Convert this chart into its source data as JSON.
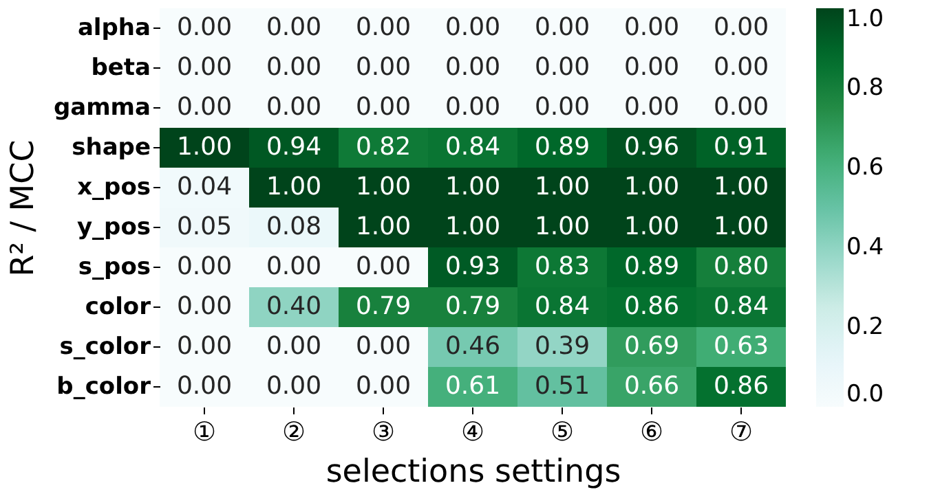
{
  "chart_data": {
    "type": "heatmap",
    "xlabel": "selections settings",
    "ylabel": "R² / MCC",
    "categories": [
      "①",
      "②",
      "③",
      "④",
      "⑤",
      "⑥",
      "⑦"
    ],
    "y_categories": [
      "alpha",
      "beta",
      "gamma",
      "shape",
      "x_pos",
      "y_pos",
      "s_pos",
      "color",
      "s_color",
      "b_color"
    ],
    "cells": [
      [
        0,
        0,
        0,
        0,
        0,
        0,
        0
      ],
      [
        0,
        0,
        0,
        0,
        0,
        0,
        0
      ],
      [
        0,
        0,
        0,
        0,
        0,
        0,
        0
      ],
      [
        1,
        0.94,
        0.82,
        0.84,
        0.89,
        0.96,
        0.91
      ],
      [
        0.04,
        1,
        1,
        1,
        1,
        1,
        1
      ],
      [
        0.05,
        0.08,
        1,
        1,
        1,
        1,
        1
      ],
      [
        0,
        0,
        0,
        0.93,
        0.83,
        0.89,
        0.8
      ],
      [
        0,
        0.4,
        0.79,
        0.79,
        0.84,
        0.86,
        0.84
      ],
      [
        0,
        0,
        0,
        0.46,
        0.39,
        0.69,
        0.63
      ],
      [
        0,
        0,
        0,
        0.61,
        0.51,
        0.66,
        0.86
      ]
    ],
    "cell_labels": [
      [
        "0.00",
        "0.00",
        "0.00",
        "0.00",
        "0.00",
        "0.00",
        "0.00"
      ],
      [
        "0.00",
        "0.00",
        "0.00",
        "0.00",
        "0.00",
        "0.00",
        "0.00"
      ],
      [
        "0.00",
        "0.00",
        "0.00",
        "0.00",
        "0.00",
        "0.00",
        "0.00"
      ],
      [
        "1.00",
        "0.94",
        "0.82",
        "0.84",
        "0.89",
        "0.96",
        "0.91"
      ],
      [
        "0.04",
        "1.00",
        "1.00",
        "1.00",
        "1.00",
        "1.00",
        "1.00"
      ],
      [
        "0.05",
        "0.08",
        "1.00",
        "1.00",
        "1.00",
        "1.00",
        "1.00"
      ],
      [
        "0.00",
        "0.00",
        "0.00",
        "0.93",
        "0.83",
        "0.89",
        "0.80"
      ],
      [
        "0.00",
        "0.40",
        "0.79",
        "0.79",
        "0.84",
        "0.86",
        "0.84"
      ],
      [
        "0.00",
        "0.00",
        "0.00",
        "0.46",
        "0.39",
        "0.69",
        "0.63"
      ],
      [
        "0.00",
        "0.00",
        "0.00",
        "0.61",
        "0.51",
        "0.66",
        "0.86"
      ]
    ],
    "clim": [
      0,
      1
    ],
    "cticks": [
      {
        "value": 0,
        "label": "0.0"
      },
      {
        "value": 0.2,
        "label": "0.2"
      },
      {
        "value": 0.4,
        "label": "0.4"
      },
      {
        "value": 0.6,
        "label": "0.6"
      },
      {
        "value": 0.8,
        "label": "0.8"
      },
      {
        "value": 1,
        "label": "1.0"
      }
    ]
  }
}
